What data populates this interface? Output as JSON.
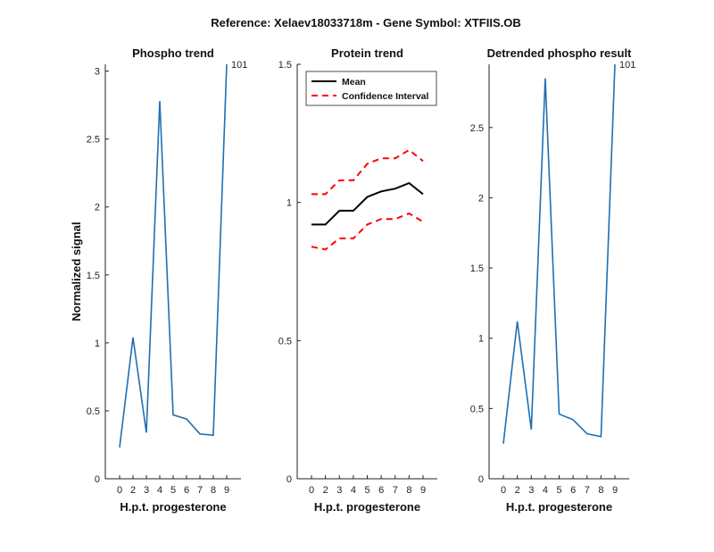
{
  "figure_title": "Reference:  Xelaev18033718m - Gene Symbol:  XTFIIS.OB",
  "chart_data": [
    {
      "type": "line",
      "id": "phospho",
      "title": "Phospho trend",
      "xlabel": "H.p.t. progesterone",
      "ylabel": "Normalized signal",
      "x_ticks": [
        "0",
        "2",
        "3",
        "4",
        "5",
        "6",
        "7",
        "8",
        "9"
      ],
      "ylim": [
        0,
        3.05
      ],
      "y_ticks": [
        0,
        0.5,
        1,
        1.5,
        2,
        2.5,
        3
      ],
      "y_tick_labels": [
        "0",
        "0.5",
        "1",
        "1.5",
        "2",
        "2.5",
        "3"
      ],
      "series": [
        {
          "name": "Phospho",
          "color": "#1f6fb2",
          "dash": "",
          "values": [
            0.23,
            1.04,
            0.34,
            2.78,
            0.47,
            0.44,
            0.33,
            0.32,
            3.05
          ]
        }
      ],
      "annotations": [
        {
          "text": "101",
          "x_index": 8,
          "y": 3.05
        }
      ]
    },
    {
      "type": "line",
      "id": "protein",
      "title": "Protein trend",
      "xlabel": "H.p.t. progesterone",
      "ylabel": "",
      "x_ticks": [
        "0",
        "2",
        "3",
        "4",
        "5",
        "6",
        "7",
        "8",
        "9"
      ],
      "ylim": [
        0,
        1.5
      ],
      "y_ticks": [
        0,
        0.5,
        1,
        1.5
      ],
      "y_tick_labels": [
        "0",
        "0.5",
        "1",
        "1.5"
      ],
      "series": [
        {
          "name": "Mean",
          "color": "#000000",
          "dash": "",
          "values": [
            0.92,
            0.92,
            0.97,
            0.97,
            1.02,
            1.04,
            1.05,
            1.07,
            1.03
          ]
        },
        {
          "name": "Confidence Interval",
          "color": "#ff0000",
          "dash": "7,5",
          "values": [
            1.03,
            1.03,
            1.08,
            1.08,
            1.14,
            1.16,
            1.16,
            1.19,
            1.15
          ]
        },
        {
          "name": "Confidence Interval lower",
          "color": "#ff0000",
          "dash": "7,5",
          "values": [
            0.84,
            0.83,
            0.87,
            0.87,
            0.92,
            0.94,
            0.94,
            0.96,
            0.93
          ]
        }
      ],
      "legend": {
        "position": "top-left",
        "entries": [
          {
            "label": "Mean",
            "color": "#000000",
            "dash": ""
          },
          {
            "label": "Confidence Interval",
            "color": "#ff0000",
            "dash": "7,5"
          }
        ]
      },
      "annotations": []
    },
    {
      "type": "line",
      "id": "detrended",
      "title": "Detrended phospho result",
      "xlabel": "H.p.t. progesterone",
      "ylabel": "",
      "x_ticks": [
        "0",
        "2",
        "3",
        "4",
        "5",
        "6",
        "7",
        "8",
        "9"
      ],
      "ylim": [
        0,
        2.95
      ],
      "y_ticks": [
        0,
        0.5,
        1,
        1.5,
        2,
        2.5
      ],
      "y_tick_labels": [
        "0",
        "0.5",
        "1",
        "1.5",
        "2",
        "2.5"
      ],
      "series": [
        {
          "name": "Detrended",
          "color": "#1f6fb2",
          "dash": "",
          "values": [
            0.25,
            1.12,
            0.35,
            2.85,
            0.46,
            0.42,
            0.32,
            0.3,
            2.95
          ]
        }
      ],
      "annotations": [
        {
          "text": "101",
          "x_index": 8,
          "y": 2.95
        }
      ]
    }
  ]
}
